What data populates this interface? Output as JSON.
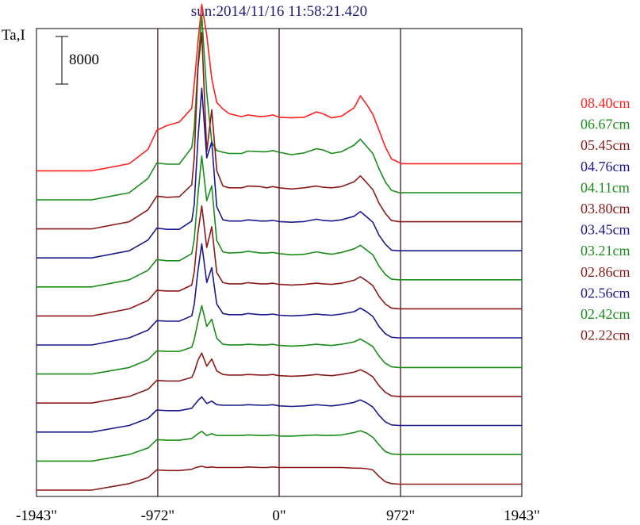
{
  "chart_data": {
    "type": "line",
    "title": "sun:2014/11/16 11:58:21.420",
    "ylabel": "Ta,I",
    "scale_bar_label": "8000",
    "scale_bar_value": 8000,
    "xlim": [
      -1943,
      1943
    ],
    "x_ticks": [
      {
        "value": -1943,
        "label": "-1943\""
      },
      {
        "value": -972,
        "label": "-972\""
      },
      {
        "value": 0,
        "label": "0\""
      },
      {
        "value": 972,
        "label": "972\""
      },
      {
        "value": 1943,
        "label": "1943\""
      }
    ],
    "vertical_lines": [
      -972,
      0,
      972
    ],
    "x": [
      -1943,
      -1500,
      -1200,
      -1050,
      -980,
      -900,
      -800,
      -700,
      -680,
      -650,
      -620,
      -580,
      -540,
      -500,
      -450,
      -400,
      -300,
      -250,
      -150,
      -100,
      -50,
      0,
      100,
      200,
      300,
      350,
      420,
      500,
      600,
      650,
      700,
      750,
      800,
      850,
      900,
      960,
      980,
      1050,
      1150,
      1200,
      1400,
      1943
    ],
    "series": [
      {
        "name": "08.40cm",
        "color": "#ff2020",
        "values": [
          0,
          0,
          1200,
          3600,
          6800,
          7600,
          8200,
          10500,
          14600,
          21600,
          28000,
          22800,
          15500,
          11500,
          10400,
          9600,
          9100,
          9400,
          9100,
          9200,
          9400,
          9000,
          8900,
          9000,
          9900,
          9600,
          8900,
          9200,
          10600,
          12600,
          11200,
          9500,
          6800,
          4000,
          2000,
          1400,
          1200,
          1200,
          1200,
          1200,
          1200,
          1200
        ]
      },
      {
        "name": "06.67cm",
        "color": "#1a8c1a",
        "values": [
          0,
          0,
          1200,
          3600,
          6200,
          6000,
          6000,
          8800,
          12000,
          22600,
          31000,
          18000,
          9700,
          8300,
          8000,
          7800,
          7800,
          8200,
          8100,
          8100,
          8300,
          8000,
          7600,
          7900,
          8600,
          8400,
          7800,
          8100,
          9200,
          10200,
          9000,
          7800,
          5200,
          3000,
          1600,
          1200,
          1200,
          1200,
          1200,
          1200,
          1200,
          1200
        ]
      },
      {
        "name": "05.45cm",
        "color": "#8b1a1a",
        "values": [
          0,
          0,
          1200,
          3200,
          5500,
          5300,
          5400,
          7400,
          12000,
          27000,
          33000,
          13000,
          20000,
          9800,
          7200,
          6900,
          6900,
          7200,
          7100,
          6900,
          7100,
          6900,
          6700,
          6900,
          7200,
          7000,
          6900,
          7100,
          7900,
          8900,
          7800,
          6600,
          4300,
          2600,
          1400,
          1200,
          1200,
          1200,
          1200,
          1200,
          1200,
          1200
        ]
      },
      {
        "name": "04.76cm",
        "color": "#1a1a8c",
        "values": [
          0,
          0,
          1200,
          3000,
          5000,
          4800,
          4800,
          6200,
          9000,
          20000,
          28500,
          16800,
          19500,
          8600,
          6400,
          6200,
          6200,
          6400,
          6200,
          6200,
          6300,
          6100,
          6000,
          6100,
          6500,
          6300,
          6200,
          6400,
          7000,
          7800,
          6900,
          6000,
          3800,
          2300,
          1300,
          1200,
          1200,
          1200,
          1200,
          1200,
          1200,
          1200
        ]
      },
      {
        "name": "04.11cm",
        "color": "#1a8c1a",
        "values": [
          0,
          0,
          1200,
          2800,
          4600,
          4400,
          4400,
          5600,
          8000,
          15500,
          22000,
          14500,
          17000,
          7800,
          5900,
          5700,
          5800,
          6000,
          5700,
          5700,
          5800,
          5600,
          5400,
          5500,
          5900,
          5700,
          5500,
          5800,
          6400,
          7000,
          6200,
          5400,
          3500,
          2100,
          1300,
          1200,
          1200,
          1200,
          1200,
          1200,
          1200,
          1200
        ]
      },
      {
        "name": "03.80cm",
        "color": "#8b1a1a",
        "values": [
          0,
          0,
          1200,
          2600,
          4300,
          4200,
          4200,
          5200,
          7400,
          14000,
          18500,
          11500,
          15000,
          7300,
          5600,
          5400,
          5400,
          5600,
          5400,
          5400,
          5500,
          5300,
          5200,
          5300,
          5500,
          5400,
          5300,
          5500,
          6000,
          6600,
          5900,
          5100,
          3300,
          2000,
          1300,
          1200,
          1200,
          1200,
          1200,
          1200,
          1200,
          1200
        ]
      },
      {
        "name": "03.45cm",
        "color": "#1a1a8c",
        "values": [
          0,
          0,
          1200,
          2500,
          4100,
          4000,
          4000,
          4900,
          6800,
          12500,
          17000,
          10500,
          13000,
          6900,
          5300,
          5100,
          5100,
          5300,
          5100,
          5100,
          5200,
          5000,
          4900,
          5000,
          5200,
          5100,
          5000,
          5200,
          5600,
          6200,
          5600,
          4800,
          3100,
          1900,
          1300,
          1200,
          1200,
          1200,
          1200,
          1200,
          1200,
          1200
        ]
      },
      {
        "name": "03.21cm",
        "color": "#1a8c1a",
        "values": [
          0,
          0,
          1100,
          2400,
          3900,
          3800,
          3800,
          4500,
          5800,
          8800,
          11500,
          8000,
          9200,
          6000,
          5000,
          4900,
          4900,
          5000,
          4900,
          4900,
          5000,
          4800,
          4700,
          4800,
          5000,
          4900,
          4800,
          5000,
          5400,
          5900,
          5300,
          4600,
          3000,
          1800,
          1200,
          1100,
          1100,
          1100,
          1100,
          1100,
          1100,
          1100
        ]
      },
      {
        "name": "02.86cm",
        "color": "#8b1a1a",
        "values": [
          0,
          0,
          1100,
          2300,
          3800,
          3700,
          3700,
          4300,
          5200,
          7200,
          8400,
          6200,
          7400,
          5400,
          4800,
          4700,
          4700,
          4800,
          4700,
          4700,
          4800,
          4600,
          4500,
          4600,
          4800,
          4700,
          4600,
          4800,
          5200,
          5600,
          5100,
          4400,
          2900,
          1800,
          1200,
          1100,
          1100,
          1100,
          1100,
          1100,
          1100,
          1100
        ]
      },
      {
        "name": "02.56cm",
        "color": "#1a1a8c",
        "values": [
          0,
          0,
          1100,
          2300,
          3700,
          3600,
          3600,
          4000,
          4500,
          5300,
          5900,
          4800,
          5200,
          4600,
          4500,
          4500,
          4500,
          4600,
          4500,
          4500,
          4600,
          4400,
          4300,
          4400,
          4600,
          4500,
          4400,
          4600,
          5000,
          5400,
          4900,
          4200,
          2800,
          1700,
          1200,
          1100,
          1100,
          1100,
          1100,
          1100,
          1100,
          1100
        ]
      },
      {
        "name": "02.42cm",
        "color": "#1a8c1a",
        "values": [
          0,
          0,
          1100,
          2200,
          3600,
          3500,
          3500,
          3800,
          4100,
          4600,
          5000,
          4300,
          4600,
          4300,
          4300,
          4300,
          4300,
          4400,
          4300,
          4300,
          4400,
          4200,
          4200,
          4300,
          4400,
          4300,
          4300,
          4400,
          4800,
          5100,
          4700,
          4000,
          2700,
          1600,
          1200,
          1100,
          1100,
          1100,
          1100,
          1100,
          1100,
          1100
        ]
      },
      {
        "name": "02.22cm",
        "color": "#8b1a1a",
        "values": [
          0,
          0,
          1100,
          2100,
          3400,
          3300,
          3300,
          3500,
          3700,
          3900,
          4000,
          3800,
          3900,
          3800,
          3800,
          3800,
          3800,
          3900,
          3800,
          3800,
          3900,
          3800,
          3800,
          3800,
          3800,
          3800,
          3800,
          3800,
          3700,
          3700,
          3600,
          3400,
          2300,
          1400,
          1100,
          1000,
          1000,
          1000,
          1000,
          1000,
          1000,
          1000
        ]
      }
    ]
  }
}
